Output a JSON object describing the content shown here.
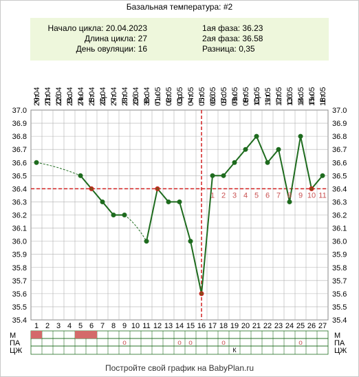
{
  "header": {
    "title": "Базальная температура: #2"
  },
  "info": {
    "cycle_start": "Начало цикла: 20.04.2023",
    "cycle_length": "Длина цикла: 27",
    "ovulation_day": "День овуляции: 16",
    "phase1": "1ая фаза: 36.23",
    "phase2": "2ая фаза: 36.58",
    "difference": "Разница: 0,35"
  },
  "footer": {
    "text": "Постройте свой график на BabyPlan.ru"
  },
  "colors": {
    "line": "#1e6b1e",
    "marker": "#1e6b1e",
    "ref_line": "#d42020",
    "grid": "#b0b0b0",
    "menses": "#d46a6a",
    "info_bg": "#eef7dc",
    "counter": "#c85050"
  },
  "chart_data": {
    "type": "line",
    "x": [
      1,
      2,
      3,
      4,
      5,
      6,
      7,
      8,
      9,
      10,
      11,
      12,
      13,
      14,
      15,
      16,
      17,
      18,
      19,
      20,
      21,
      22,
      23,
      24,
      25,
      26,
      27
    ],
    "dates": [
      "20.04",
      "21.04",
      "22.04",
      "23.04",
      "24.04",
      "25.04",
      "26.04",
      "27.04",
      "28.04",
      "29.04",
      "30.04",
      "01.05",
      "02.05",
      "03.05",
      "04.05",
      "05.05",
      "06.05",
      "07.05",
      "08.05",
      "09.05",
      "10.05",
      "11.05",
      "12.05",
      "13.05",
      "14.05",
      "15.05",
      "16.05"
    ],
    "weekdays": [
      "Чт",
      "Пт",
      "Сб",
      "Вс",
      "Пн",
      "Вт",
      "Ср",
      "Чт",
      "Пт",
      "Сб",
      "Вс",
      "Пн",
      "Вт",
      "Ср",
      "Чт",
      "Пт",
      "Сб",
      "Вс",
      "Пн",
      "Вт",
      "Ср",
      "Чт",
      "Пт",
      "Сб",
      "Вс",
      "Пн",
      "Вт"
    ],
    "series": [
      {
        "values": [
          36.6,
          null,
          null,
          null,
          36.5,
          36.4,
          36.3,
          36.2,
          36.2,
          null,
          36.0,
          36.4,
          36.3,
          36.3,
          36.0,
          35.6,
          36.5,
          36.5,
          36.6,
          36.7,
          36.8,
          36.6,
          36.7,
          36.3,
          36.8,
          36.4,
          36.5
        ]
      }
    ],
    "ylim": [
      35.4,
      37.0
    ],
    "yticks": [
      "37.0",
      "36.9",
      "36.8",
      "36.7",
      "36.6",
      "36.5",
      "36.4",
      "36.3",
      "36.2",
      "36.1",
      "36.0",
      "35.9",
      "35.8",
      "35.7",
      "35.6",
      "35.5",
      "35.4"
    ],
    "coverline": 36.4,
    "ovulation_day": 16,
    "phase2_counts": [
      {
        "day": 17,
        "label": "1"
      },
      {
        "day": 18,
        "label": "2"
      },
      {
        "day": 19,
        "label": "3"
      },
      {
        "day": 20,
        "label": "4"
      },
      {
        "day": 21,
        "label": "5"
      },
      {
        "day": 22,
        "label": "6"
      },
      {
        "day": 23,
        "label": "7"
      },
      {
        "day": 24,
        "label": "8"
      },
      {
        "day": 25,
        "label": "9"
      },
      {
        "day": 26,
        "label": "10"
      },
      {
        "day": 27,
        "label": "11"
      }
    ],
    "grid": true,
    "rows": {
      "labels": [
        "М",
        "ПА",
        "ЦЖ"
      ],
      "menses_days": [
        1,
        5,
        6
      ],
      "intercourse_days": [
        9,
        14,
        15,
        18,
        25
      ],
      "intercourse_symbol": "о",
      "mucus": [
        {
          "day": 19,
          "label": "К"
        }
      ]
    }
  }
}
